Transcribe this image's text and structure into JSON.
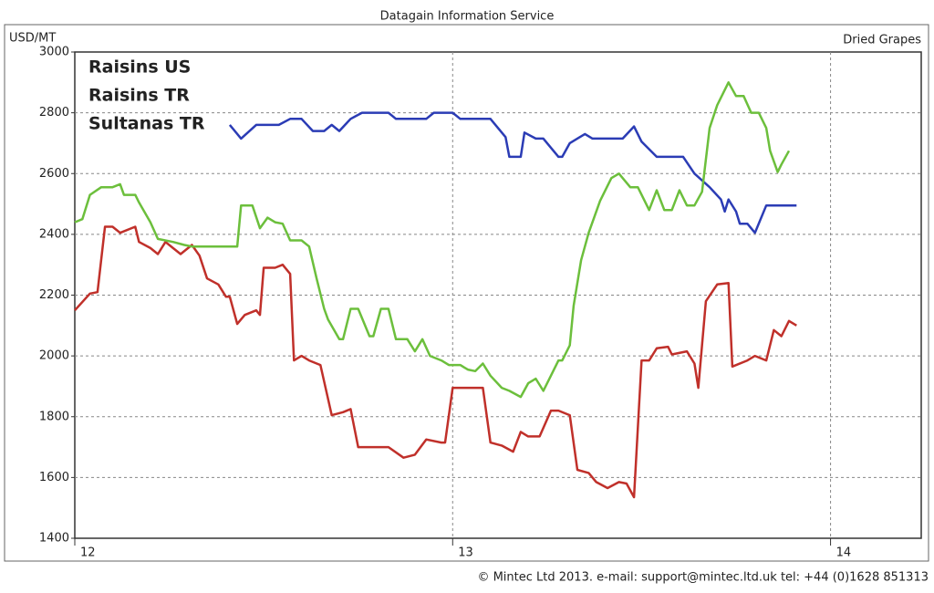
{
  "chart_data": {
    "type": "line",
    "title": "Datagain Information Service",
    "y_label": "USD/MT",
    "subtitle": "Dried Grapes",
    "footer": "© Mintec Ltd 2013. e-mail: support@mintec.ltd.uk tel: +44 (0)1628 851313",
    "xlim": [
      12,
      14.24
    ],
    "xticks": [
      12,
      13,
      14
    ],
    "ylim": [
      1400,
      3000
    ],
    "yticks": [
      1400,
      1600,
      1800,
      2000,
      2200,
      2400,
      2600,
      2800,
      3000
    ],
    "grid": true,
    "legend": "upper left",
    "series": [
      {
        "name": "Raisins US",
        "color": "#2b3cb5",
        "x": [
          12.41,
          12.44,
          12.48,
          12.54,
          12.57,
          12.6,
          12.63,
          12.66,
          12.68,
          12.7,
          12.73,
          12.76,
          12.83,
          12.85,
          12.93,
          12.95,
          13.0,
          13.02,
          13.1,
          13.14,
          13.15,
          13.18,
          13.19,
          13.22,
          13.24,
          13.28,
          13.29,
          13.31,
          13.35,
          13.37,
          13.45,
          13.48,
          13.5,
          13.54,
          13.61,
          13.64,
          13.68,
          13.71,
          13.72,
          13.73,
          13.75,
          13.76,
          13.78,
          13.8,
          13.83,
          13.91
        ],
        "values": [
          2760,
          2715,
          2760,
          2760,
          2780,
          2780,
          2740,
          2740,
          2760,
          2740,
          2780,
          2800,
          2800,
          2780,
          2780,
          2800,
          2800,
          2780,
          2780,
          2720,
          2655,
          2655,
          2735,
          2715,
          2715,
          2655,
          2655,
          2700,
          2730,
          2715,
          2715,
          2755,
          2705,
          2655,
          2655,
          2600,
          2555,
          2515,
          2475,
          2515,
          2475,
          2435,
          2435,
          2405,
          2495,
          2495
        ]
      },
      {
        "name": "Raisins TR",
        "color": "#c0302a",
        "x": [
          12.0,
          12.04,
          12.06,
          12.08,
          12.1,
          12.12,
          12.16,
          12.17,
          12.2,
          12.22,
          12.24,
          12.26,
          12.28,
          12.31,
          12.33,
          12.35,
          12.38,
          12.4,
          12.41,
          12.43,
          12.45,
          12.48,
          12.49,
          12.5,
          12.53,
          12.55,
          12.57,
          12.58,
          12.6,
          12.62,
          12.65,
          12.68,
          12.71,
          12.73,
          12.75,
          12.78,
          12.83,
          12.87,
          12.9,
          12.93,
          12.97,
          12.98,
          13.0,
          13.08,
          13.1,
          13.13,
          13.16,
          13.18,
          13.2,
          13.23,
          13.26,
          13.28,
          13.31,
          13.33,
          13.36,
          13.38,
          13.41,
          13.44,
          13.46,
          13.48,
          13.5,
          13.52,
          13.54,
          13.57,
          13.58,
          13.62,
          13.64,
          13.65,
          13.67,
          13.7,
          13.73,
          13.74,
          13.78,
          13.8,
          13.83,
          13.85,
          13.87,
          13.89,
          13.91
        ],
        "values": [
          2150,
          2205,
          2210,
          2425,
          2425,
          2405,
          2425,
          2375,
          2355,
          2335,
          2375,
          2355,
          2335,
          2365,
          2330,
          2255,
          2235,
          2195,
          2195,
          2105,
          2135,
          2150,
          2135,
          2290,
          2290,
          2300,
          2270,
          1985,
          2000,
          1985,
          1970,
          1805,
          1815,
          1825,
          1700,
          1700,
          1700,
          1665,
          1675,
          1725,
          1715,
          1715,
          1895,
          1895,
          1715,
          1705,
          1685,
          1750,
          1735,
          1735,
          1820,
          1820,
          1805,
          1625,
          1615,
          1585,
          1565,
          1585,
          1580,
          1535,
          1985,
          1985,
          2025,
          2030,
          2005,
          2015,
          1975,
          1895,
          2180,
          2235,
          2240,
          1965,
          1985,
          2000,
          1985,
          2085,
          2065,
          2115,
          2100
        ]
      },
      {
        "name": "Sultanas TR",
        "color": "#6cbf3c",
        "x": [
          12.0,
          12.02,
          12.04,
          12.07,
          12.1,
          12.12,
          12.13,
          12.16,
          12.17,
          12.2,
          12.22,
          12.26,
          12.29,
          12.31,
          12.43,
          12.44,
          12.47,
          12.49,
          12.51,
          12.53,
          12.55,
          12.57,
          12.6,
          12.62,
          12.64,
          12.66,
          12.67,
          12.7,
          12.71,
          12.73,
          12.75,
          12.78,
          12.79,
          12.81,
          12.83,
          12.85,
          12.88,
          12.9,
          12.92,
          12.94,
          12.97,
          12.99,
          13.02,
          13.04,
          13.06,
          13.08,
          13.1,
          13.13,
          13.15,
          13.18,
          13.2,
          13.22,
          13.24,
          13.26,
          13.28,
          13.29,
          13.31,
          13.32,
          13.34,
          13.36,
          13.39,
          13.42,
          13.44,
          13.47,
          13.49,
          13.52,
          13.54,
          13.56,
          13.58,
          13.6,
          13.62,
          13.64,
          13.66,
          13.68,
          13.7,
          13.73,
          13.75,
          13.77,
          13.79,
          13.81,
          13.83,
          13.84,
          13.86,
          13.87,
          13.89
        ],
        "values": [
          2440,
          2450,
          2530,
          2555,
          2555,
          2565,
          2530,
          2530,
          2505,
          2440,
          2385,
          2375,
          2365,
          2360,
          2360,
          2495,
          2495,
          2420,
          2455,
          2440,
          2435,
          2380,
          2380,
          2360,
          2255,
          2155,
          2120,
          2055,
          2055,
          2155,
          2155,
          2065,
          2065,
          2155,
          2155,
          2055,
          2055,
          2015,
          2055,
          2000,
          1985,
          1970,
          1970,
          1955,
          1950,
          1975,
          1935,
          1895,
          1885,
          1865,
          1910,
          1925,
          1885,
          1935,
          1985,
          1985,
          2035,
          2165,
          2315,
          2405,
          2510,
          2585,
          2600,
          2555,
          2555,
          2480,
          2545,
          2480,
          2480,
          2545,
          2495,
          2495,
          2540,
          2750,
          2825,
          2900,
          2855,
          2855,
          2800,
          2800,
          2750,
          2675,
          2605,
          2630,
          2675
        ]
      }
    ]
  }
}
